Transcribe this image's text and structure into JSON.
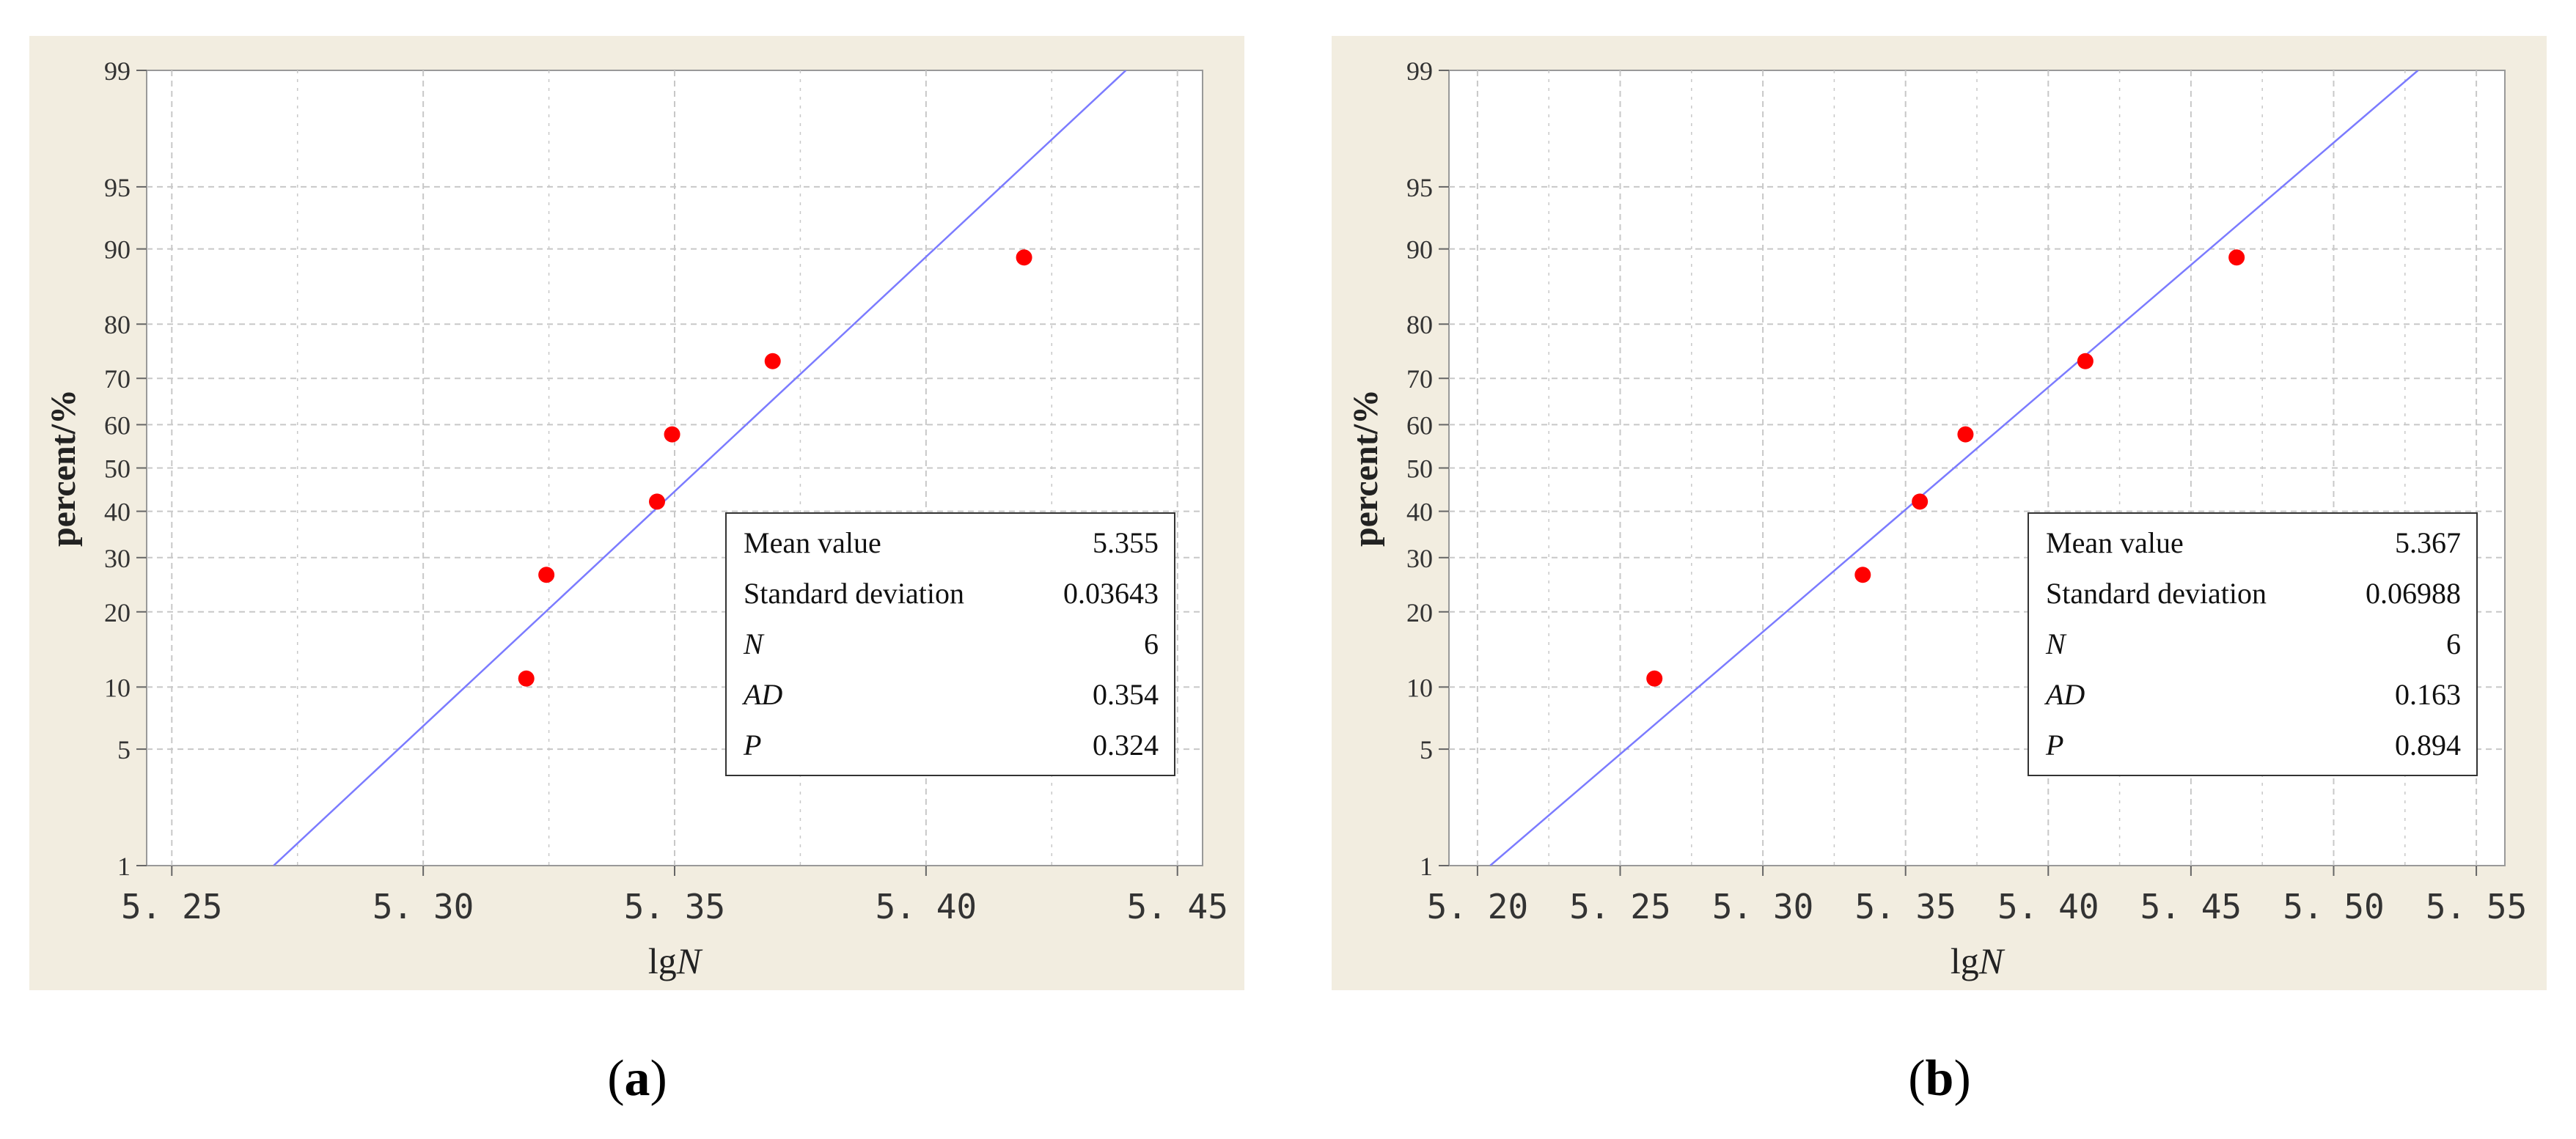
{
  "colors": {
    "panel_background": "#f2ede0",
    "plot_background": "#ffffff",
    "grid": "#c8c8c8",
    "fit_line": "#7b7bff",
    "points": "#ff0000"
  },
  "chart_data": [
    {
      "type": "scatter",
      "panel_label": "a",
      "xlabel_main": "lg",
      "xlabel_italic": "N",
      "ylabel": "percent/%",
      "x_ticks": [
        "5. 25",
        "5. 30",
        "5. 35",
        "5. 40",
        "5. 45"
      ],
      "x_tick_values": [
        5.25,
        5.3,
        5.35,
        5.4,
        5.45
      ],
      "xlim": [
        5.245,
        5.455
      ],
      "y_scale": "normal-probability",
      "y_ticks": [
        "1",
        "5",
        "10",
        "20",
        "30",
        "40",
        "50",
        "60",
        "70",
        "80",
        "90",
        "95",
        "99"
      ],
      "y_tick_values": [
        1,
        5,
        10,
        20,
        30,
        40,
        50,
        60,
        70,
        80,
        90,
        95,
        99
      ],
      "grid": true,
      "points": [
        {
          "x": 5.3205,
          "y": 10.9
        },
        {
          "x": 5.3245,
          "y": 26.6
        },
        {
          "x": 5.3465,
          "y": 42.2
        },
        {
          "x": 5.3495,
          "y": 57.8
        },
        {
          "x": 5.3695,
          "y": 73.4
        },
        {
          "x": 5.4195,
          "y": 89.1
        }
      ],
      "fit_line": {
        "mean": 5.355,
        "sd": 0.03643
      },
      "legend_position": "bottom-right",
      "stats": [
        {
          "label": "Mean value",
          "value": "5.355",
          "italic": false
        },
        {
          "label": "Standard deviation",
          "value": "0.03643",
          "italic": false
        },
        {
          "label": "N",
          "value": "6",
          "italic": true
        },
        {
          "label": "AD",
          "value": "0.354",
          "italic": true
        },
        {
          "label": "P",
          "value": "0.324",
          "italic": true
        }
      ]
    },
    {
      "type": "scatter",
      "panel_label": "b",
      "xlabel_main": "lg",
      "xlabel_italic": "N",
      "ylabel": "percent/%",
      "x_ticks": [
        "5. 20",
        "5. 25",
        "5. 30",
        "5. 35",
        "5. 40",
        "5. 45",
        "5. 50",
        "5. 55"
      ],
      "x_tick_values": [
        5.2,
        5.25,
        5.3,
        5.35,
        5.4,
        5.45,
        5.5,
        5.55
      ],
      "xlim": [
        5.19,
        5.56
      ],
      "y_scale": "normal-probability",
      "y_ticks": [
        "1",
        "5",
        "10",
        "20",
        "30",
        "40",
        "50",
        "60",
        "70",
        "80",
        "90",
        "95",
        "99"
      ],
      "y_tick_values": [
        1,
        5,
        10,
        20,
        30,
        40,
        50,
        60,
        70,
        80,
        90,
        95,
        99
      ],
      "grid": true,
      "points": [
        {
          "x": 5.262,
          "y": 10.9
        },
        {
          "x": 5.335,
          "y": 26.6
        },
        {
          "x": 5.355,
          "y": 42.2
        },
        {
          "x": 5.371,
          "y": 57.8
        },
        {
          "x": 5.413,
          "y": 73.4
        },
        {
          "x": 5.466,
          "y": 89.1
        }
      ],
      "fit_line": {
        "mean": 5.367,
        "sd": 0.06988
      },
      "legend_position": "bottom-right",
      "stats": [
        {
          "label": "Mean value",
          "value": "5.367",
          "italic": false
        },
        {
          "label": "Standard deviation",
          "value": "0.06988",
          "italic": false
        },
        {
          "label": "N",
          "value": "6",
          "italic": true
        },
        {
          "label": "AD",
          "value": "0.163",
          "italic": true
        },
        {
          "label": "P",
          "value": "0.894",
          "italic": true
        }
      ]
    }
  ]
}
